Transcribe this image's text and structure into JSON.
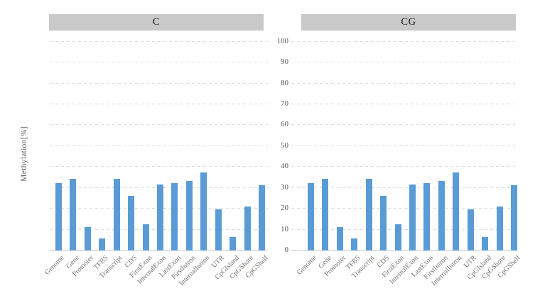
{
  "chart_data": {
    "type": "bar",
    "title": "",
    "ylabel": "Methylation[%]",
    "xlabel": "",
    "ylim": [
      0,
      100
    ],
    "yticks": [
      100,
      90,
      80,
      70,
      60,
      50,
      40,
      30,
      20,
      10,
      0
    ],
    "grid": "horizontal-dashed",
    "legend": null,
    "categories": [
      "Genome",
      "Gene",
      "Promoter",
      "TFBS",
      "Transcript",
      "CDS",
      "FirstExon",
      "InternalExon",
      "LastExon",
      "FirstIntron",
      "InternalIntron",
      "UTR",
      "CpGIsland",
      "CpGShore",
      "CpGShelf"
    ],
    "panels": [
      {
        "title": "C",
        "values": [
          32.3,
          34.4,
          11.2,
          5.8,
          34.4,
          26.0,
          12.7,
          31.5,
          32.3,
          33.4,
          37.4,
          19.8,
          6.6,
          21.2,
          31.1
        ]
      },
      {
        "title": "CG",
        "values": [
          32.3,
          34.4,
          11.2,
          5.8,
          34.4,
          26.0,
          12.7,
          31.5,
          32.3,
          33.4,
          37.4,
          19.8,
          6.6,
          21.2,
          31.1
        ]
      }
    ],
    "colors": {
      "bar": "#5b9bd5",
      "panel_header_bg": "#c9c9c9",
      "grid_line": "#dcdcdc",
      "axis_line": "#c9c9c9",
      "tick_text": "#595959",
      "category_text": "#75756e",
      "header_text": "#1a1a1a"
    }
  }
}
